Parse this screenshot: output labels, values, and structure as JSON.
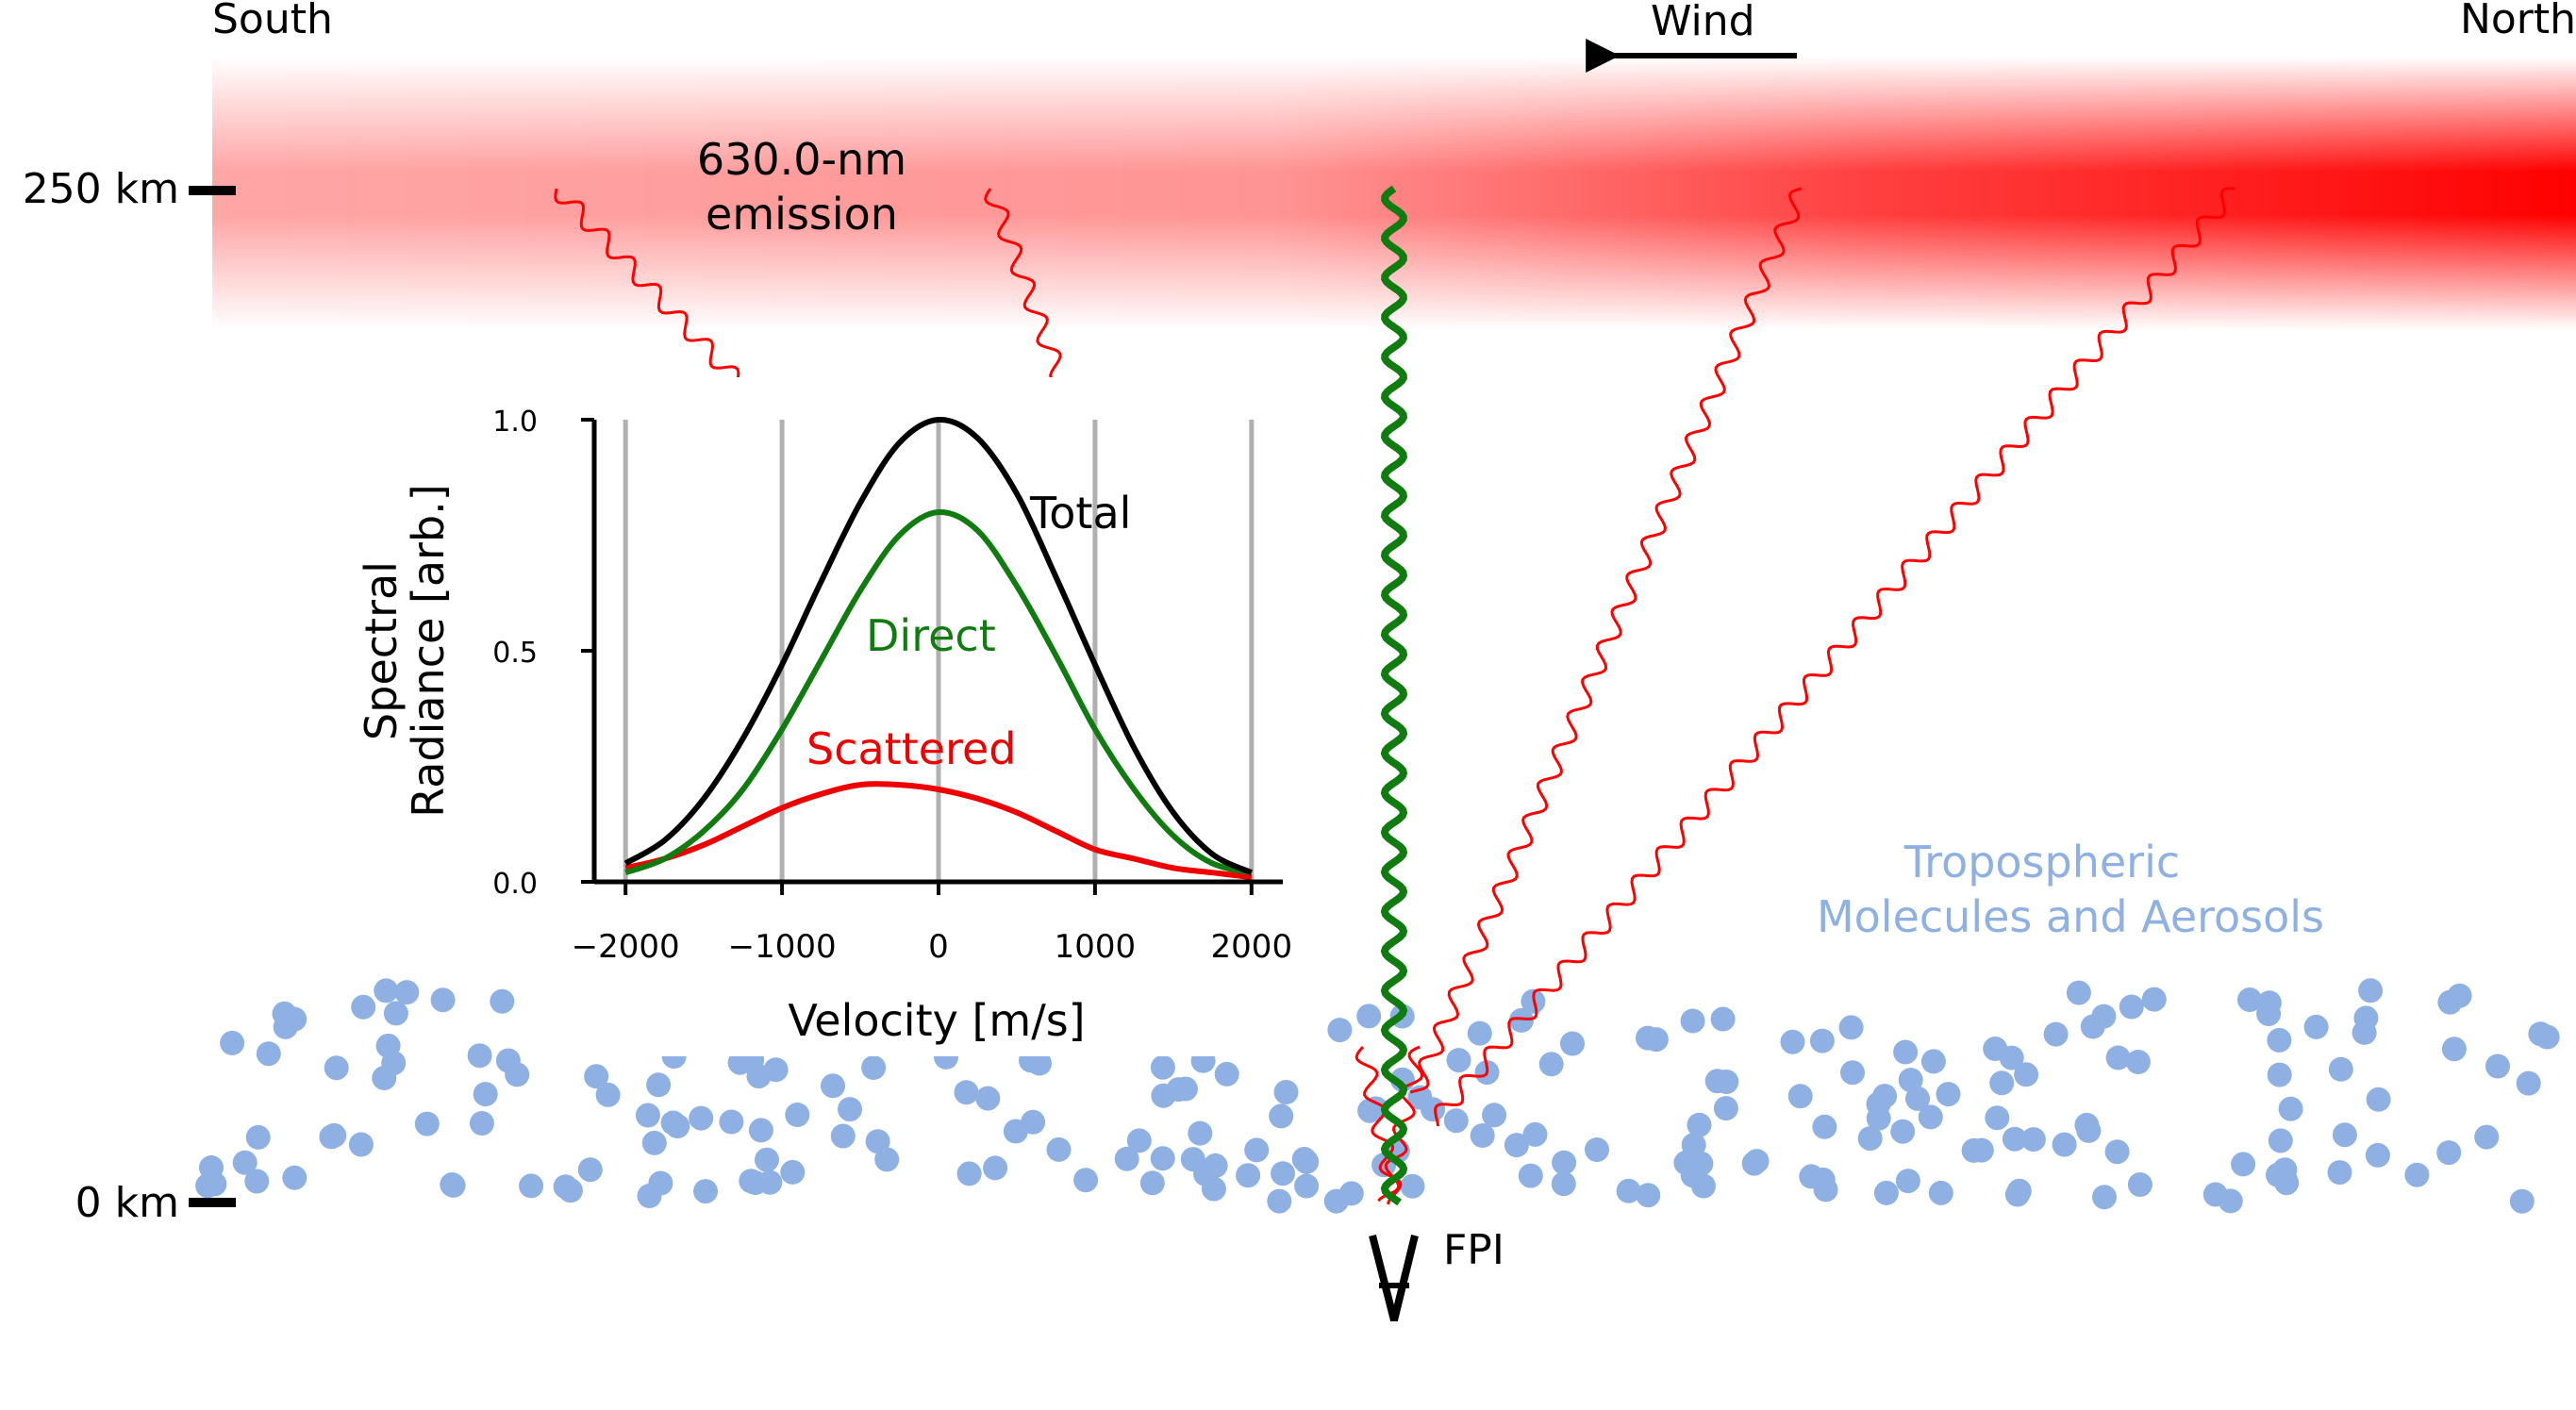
{
  "labels": {
    "south": "South",
    "north": "North",
    "wind": "Wind",
    "emission": [
      "630.0-nm",
      "emission"
    ],
    "alt_top": "250 km",
    "alt_bottom": "0 km",
    "troposphere": [
      "Tropospheric",
      "Molecules and Aerosols"
    ],
    "instrument": "FPI"
  },
  "colors": {
    "emission_red": "#ff0000",
    "direct_green": "#107c10",
    "scattered_red": "#ee0000",
    "total_black": "#000000",
    "particles_blue": "#8eb0e2",
    "grid_gray": "#b0b0b0"
  },
  "chart_data": {
    "type": "line",
    "xlabel": "Velocity [m/s]",
    "ylabel": [
      "Spectral",
      "Radiance [arb.]"
    ],
    "xlim": [
      -2200,
      2200
    ],
    "ylim": [
      0,
      1.0
    ],
    "xticks": [
      -2000,
      -1000,
      0,
      1000,
      2000
    ],
    "xtick_labels": [
      "−2000",
      "−1000",
      "0",
      "1000",
      "2000"
    ],
    "yticks": [
      0.0,
      0.5,
      1.0
    ],
    "ytick_labels": [
      "0.0",
      "0.5",
      "1.0"
    ],
    "grid": "vertical lines at x ticks",
    "series": [
      {
        "name": "Total",
        "color": "#000000",
        "x": [
          -2000,
          -1750,
          -1500,
          -1250,
          -1000,
          -750,
          -500,
          -250,
          0,
          250,
          500,
          750,
          1000,
          1250,
          1500,
          1750,
          2000
        ],
        "y": [
          0.04,
          0.09,
          0.18,
          0.31,
          0.47,
          0.65,
          0.82,
          0.95,
          1.0,
          0.96,
          0.84,
          0.66,
          0.47,
          0.29,
          0.15,
          0.06,
          0.02
        ]
      },
      {
        "name": "Direct",
        "color": "#107c10",
        "x": [
          -2000,
          -1750,
          -1500,
          -1250,
          -1000,
          -750,
          -500,
          -250,
          0,
          250,
          500,
          750,
          1000,
          1250,
          1500,
          1750,
          2000
        ],
        "y": [
          0.02,
          0.05,
          0.11,
          0.2,
          0.33,
          0.48,
          0.63,
          0.75,
          0.8,
          0.76,
          0.64,
          0.49,
          0.33,
          0.2,
          0.1,
          0.04,
          0.02
        ]
      },
      {
        "name": "Scattered",
        "color": "#ee0000",
        "x": [
          -2000,
          -1750,
          -1500,
          -1250,
          -1000,
          -750,
          -500,
          -250,
          0,
          250,
          500,
          750,
          1000,
          1250,
          1500,
          1750,
          2000
        ],
        "y": [
          0.03,
          0.05,
          0.08,
          0.12,
          0.16,
          0.19,
          0.21,
          0.21,
          0.2,
          0.18,
          0.15,
          0.11,
          0.07,
          0.05,
          0.03,
          0.02,
          0.01
        ]
      }
    ]
  }
}
